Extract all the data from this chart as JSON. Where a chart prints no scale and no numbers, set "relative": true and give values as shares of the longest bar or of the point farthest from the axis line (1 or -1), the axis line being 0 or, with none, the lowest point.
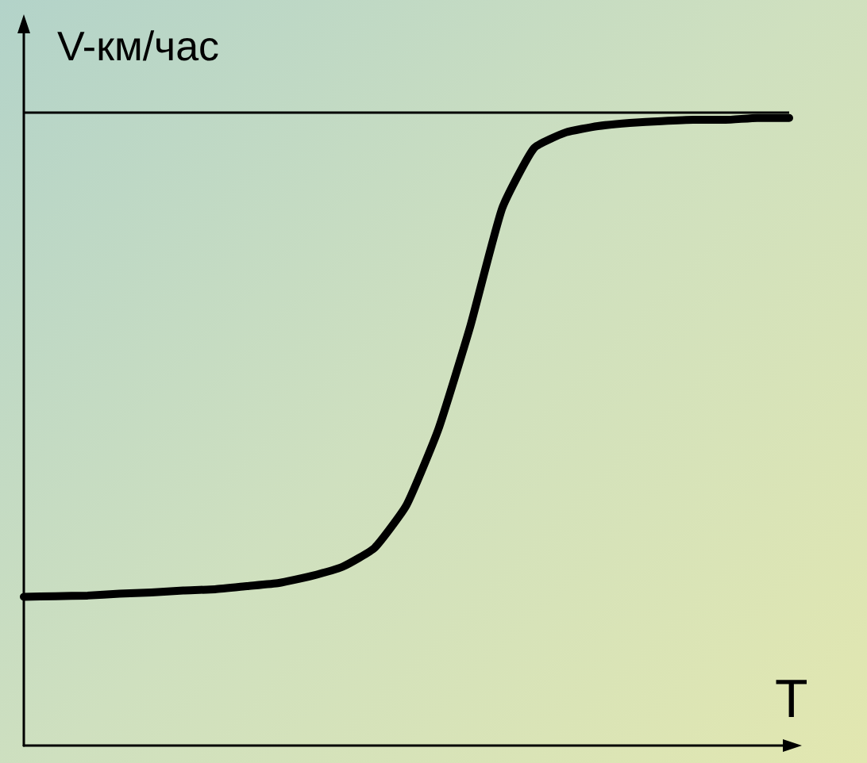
{
  "chart_data": {
    "type": "line",
    "relative": true,
    "xlabel": "T",
    "ylabel": "V-км/час",
    "categories": [
      null,
      null,
      null,
      null,
      null,
      null,
      null,
      null,
      null,
      null,
      null,
      null,
      null,
      null,
      null,
      null,
      null,
      null,
      null,
      null,
      null,
      null,
      null,
      null,
      null
    ],
    "series": [
      {
        "color": "#000000",
        "values": [
          0.237,
          0.238,
          0.239,
          0.242,
          0.244,
          0.247,
          0.249,
          0.254,
          0.259,
          0.27,
          0.285,
          0.315,
          0.383,
          0.504,
          0.668,
          0.856,
          0.952,
          0.977,
          0.987,
          0.992,
          0.995,
          0.997,
          0.997,
          1,
          1
        ]
      }
    ],
    "ref_lines": [
      {
        "axis": "y",
        "value": 1.01,
        "color": "#000000"
      }
    ],
    "marker": "none",
    "grid": false
  }
}
